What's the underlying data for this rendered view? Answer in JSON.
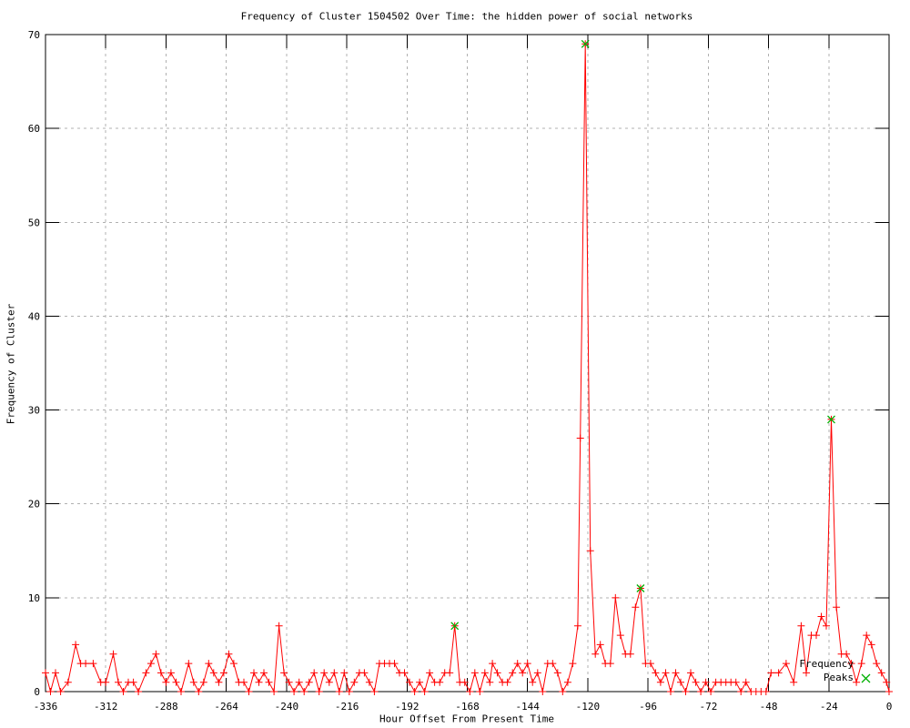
{
  "chart_data": {
    "type": "line",
    "title": "Frequency of Cluster 1504502 Over Time: the hidden power of social networks",
    "xlabel": "Hour Offset From Present Time",
    "ylabel": "Frequency of Cluster",
    "xlim": [
      -336,
      0
    ],
    "ylim": [
      0,
      70
    ],
    "x_ticks": [
      -336,
      -312,
      -288,
      -264,
      -240,
      -216,
      -192,
      -168,
      -144,
      -120,
      -96,
      -72,
      -48,
      -24,
      0
    ],
    "y_ticks": [
      0,
      10,
      20,
      30,
      40,
      50,
      60,
      70
    ],
    "grid": true,
    "grid_style": "dashed",
    "legend_position": "bottom-right-inside",
    "legend": {
      "label": "Frequency Peaks",
      "line1": "Frequency",
      "line2": "Peaks",
      "marker": "x"
    },
    "colors": {
      "series": "#ff0000",
      "peaks": "#00b000",
      "grid": "#b0b0b0",
      "axis": "#000000",
      "text": "#000000",
      "background": "#ffffff"
    },
    "series": [
      {
        "name": "frequency",
        "marker": "plus",
        "color": "#ff0000",
        "points": [
          [
            -336,
            2
          ],
          [
            -334,
            0
          ],
          [
            -332,
            2
          ],
          [
            -330,
            0
          ],
          [
            -327,
            1
          ],
          [
            -324,
            5
          ],
          [
            -322,
            3
          ],
          [
            -320,
            3
          ],
          [
            -317,
            3
          ],
          [
            -314,
            1
          ],
          [
            -312,
            1
          ],
          [
            -309,
            4
          ],
          [
            -307,
            1
          ],
          [
            -305,
            0
          ],
          [
            -303,
            1
          ],
          [
            -301,
            1
          ],
          [
            -299,
            0
          ],
          [
            -296,
            2
          ],
          [
            -294,
            3
          ],
          [
            -292,
            4
          ],
          [
            -290,
            2
          ],
          [
            -288,
            1
          ],
          [
            -286,
            2
          ],
          [
            -284,
            1
          ],
          [
            -282,
            0
          ],
          [
            -279,
            3
          ],
          [
            -277,
            1
          ],
          [
            -275,
            0
          ],
          [
            -273,
            1
          ],
          [
            -271,
            3
          ],
          [
            -269,
            2
          ],
          [
            -267,
            1
          ],
          [
            -265,
            2
          ],
          [
            -263,
            4
          ],
          [
            -261,
            3
          ],
          [
            -259,
            1
          ],
          [
            -257,
            1
          ],
          [
            -255,
            0
          ],
          [
            -253,
            2
          ],
          [
            -251,
            1
          ],
          [
            -249,
            2
          ],
          [
            -247,
            1
          ],
          [
            -245,
            0
          ],
          [
            -243,
            7
          ],
          [
            -241,
            2
          ],
          [
            -239,
            1
          ],
          [
            -237,
            0
          ],
          [
            -235,
            1
          ],
          [
            -233,
            0
          ],
          [
            -231,
            1
          ],
          [
            -229,
            2
          ],
          [
            -227,
            0
          ],
          [
            -225,
            2
          ],
          [
            -223,
            1
          ],
          [
            -221,
            2
          ],
          [
            -219,
            0
          ],
          [
            -217,
            2
          ],
          [
            -215,
            0
          ],
          [
            -213,
            1
          ],
          [
            -211,
            2
          ],
          [
            -209,
            2
          ],
          [
            -207,
            1
          ],
          [
            -205,
            0
          ],
          [
            -203,
            3
          ],
          [
            -201,
            3
          ],
          [
            -199,
            3
          ],
          [
            -197,
            3
          ],
          [
            -195,
            2
          ],
          [
            -193,
            2
          ],
          [
            -191,
            1
          ],
          [
            -189,
            0
          ],
          [
            -187,
            1
          ],
          [
            -185,
            0
          ],
          [
            -183,
            2
          ],
          [
            -181,
            1
          ],
          [
            -179,
            1
          ],
          [
            -177,
            2
          ],
          [
            -175,
            2
          ],
          [
            -173,
            7
          ],
          [
            -171,
            1
          ],
          [
            -169,
            1
          ],
          [
            -167,
            0
          ],
          [
            -165,
            2
          ],
          [
            -163,
            0
          ],
          [
            -161,
            2
          ],
          [
            -159,
            1
          ],
          [
            -158,
            3
          ],
          [
            -156,
            2
          ],
          [
            -154,
            1
          ],
          [
            -152,
            1
          ],
          [
            -150,
            2
          ],
          [
            -148,
            3
          ],
          [
            -146,
            2
          ],
          [
            -144,
            3
          ],
          [
            -142,
            1
          ],
          [
            -140,
            2
          ],
          [
            -138,
            0
          ],
          [
            -136,
            3
          ],
          [
            -134,
            3
          ],
          [
            -132,
            2
          ],
          [
            -130,
            0
          ],
          [
            -128,
            1
          ],
          [
            -126,
            3
          ],
          [
            -124,
            7
          ],
          [
            -123,
            27
          ],
          [
            -121,
            69
          ],
          [
            -119,
            15
          ],
          [
            -117,
            4
          ],
          [
            -115,
            5
          ],
          [
            -113,
            3
          ],
          [
            -111,
            3
          ],
          [
            -109,
            10
          ],
          [
            -107,
            6
          ],
          [
            -105,
            4
          ],
          [
            -103,
            4
          ],
          [
            -101,
            9
          ],
          [
            -99,
            11
          ],
          [
            -97,
            3
          ],
          [
            -95,
            3
          ],
          [
            -93,
            2
          ],
          [
            -91,
            1
          ],
          [
            -89,
            2
          ],
          [
            -87,
            0
          ],
          [
            -85,
            2
          ],
          [
            -83,
            1
          ],
          [
            -81,
            0
          ],
          [
            -79,
            2
          ],
          [
            -77,
            1
          ],
          [
            -75,
            0
          ],
          [
            -73,
            1
          ],
          [
            -71,
            0
          ],
          [
            -69,
            1
          ],
          [
            -67,
            1
          ],
          [
            -65,
            1
          ],
          [
            -63,
            1
          ],
          [
            -61,
            1
          ],
          [
            -59,
            0
          ],
          [
            -57,
            1
          ],
          [
            -55,
            0
          ],
          [
            -53,
            0
          ],
          [
            -51,
            0
          ],
          [
            -49,
            0
          ],
          [
            -47,
            2
          ],
          [
            -44,
            2
          ],
          [
            -41,
            3
          ],
          [
            -38,
            1
          ],
          [
            -35,
            7
          ],
          [
            -33,
            2
          ],
          [
            -31,
            6
          ],
          [
            -29,
            6
          ],
          [
            -27,
            8
          ],
          [
            -25,
            7
          ],
          [
            -23,
            29
          ],
          [
            -21,
            9
          ],
          [
            -19,
            4
          ],
          [
            -17,
            4
          ],
          [
            -15,
            3
          ],
          [
            -13,
            1
          ],
          [
            -11,
            3
          ],
          [
            -9,
            6
          ],
          [
            -7,
            5
          ],
          [
            -5,
            3
          ],
          [
            -3,
            2
          ],
          [
            -1,
            1
          ],
          [
            0,
            0
          ]
        ]
      },
      {
        "name": "Frequency Peaks",
        "marker": "x",
        "color": "#00b000",
        "points": [
          [
            -173,
            7
          ],
          [
            -121,
            69
          ],
          [
            -99,
            11
          ],
          [
            -23,
            29
          ]
        ]
      }
    ]
  }
}
